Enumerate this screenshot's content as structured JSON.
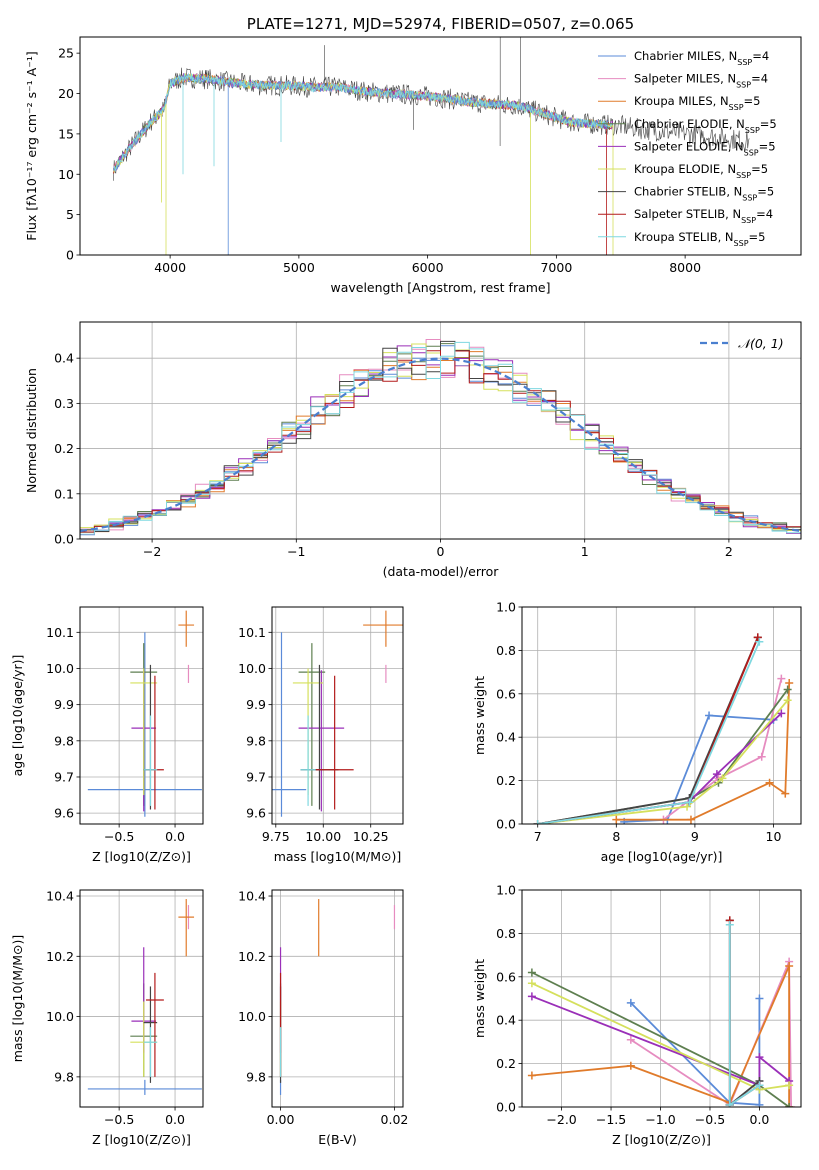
{
  "colors": {
    "chabrier_miles": "#5b8bd8",
    "salpeter_miles": "#e68cc0",
    "kroupa_miles": "#e07b2b",
    "chabrier_elodie": "#5e7f50",
    "salpeter_elodie": "#9a2fb8",
    "kroupa_elodie": "#d5e05c",
    "chabrier_stelib": "#444444",
    "salpeter_stelib": "#b31b1b",
    "kroupa_stelib": "#7fd8e0",
    "gaussian": "#4a7fcf"
  },
  "chart_data": [
    {
      "id": "spectrum",
      "type": "line",
      "title": "PLATE=1271, MJD=52974, FIBERID=0507, z=0.065",
      "xlabel": "wavelength [Angstrom, rest frame]",
      "ylabel": "Flux [fλ10⁻¹⁷ erg cm⁻² s⁻¹ A⁻¹]",
      "xlim": [
        3300,
        8900
      ],
      "ylim": [
        0,
        27
      ],
      "xticks": [
        "4000",
        "5000",
        "6000",
        "7000",
        "8000"
      ],
      "yticks": [
        "0",
        "5",
        "10",
        "15",
        "20",
        "25"
      ],
      "legend_position": "top-right",
      "legend": [
        "Chabrier MILES, N_SSP=4",
        "Salpeter MILES, N_SSP=4",
        "Kroupa MILES, N_SSP=5",
        "Chabrier ELODIE, N_SSP=5",
        "Salpeter ELODIE, N_SSP=5",
        "Kroupa ELODIE, N_SSP=5",
        "Chabrier STELIB, N_SSP=5",
        "Salpeter STELIB, N_SSP=4",
        "Kroupa STELIB, N_SSP=5"
      ],
      "continuum": {
        "x": [
          3560,
          3650,
          3750,
          3850,
          3950,
          4000,
          4100,
          4300,
          4500,
          4700,
          4900,
          5100,
          5300,
          5500,
          5700,
          5900,
          6100,
          6300,
          6500,
          6700,
          6900,
          7100,
          7300,
          7500,
          7700,
          7900,
          8100,
          8300,
          8450,
          8500
        ],
        "y": [
          10.5,
          12.5,
          14.5,
          16.5,
          18.0,
          21.2,
          22.0,
          21.8,
          21.3,
          21.0,
          21.0,
          20.8,
          20.8,
          20.3,
          20.0,
          19.8,
          19.5,
          19.0,
          18.7,
          18.5,
          17.5,
          16.5,
          16.2,
          16.0,
          15.5,
          15.2,
          14.9,
          14.5,
          14.2,
          14.1
        ]
      },
      "absorption_dips": [
        {
          "x": 3933,
          "y": 6.5,
          "series": "kroupa_elodie"
        },
        {
          "x": 3968,
          "y": 0.0,
          "series": "kroupa_elodie"
        },
        {
          "x": 4100,
          "y": 10.0,
          "series": "kroupa_stelib"
        },
        {
          "x": 4341,
          "y": 11.0,
          "series": "kroupa_stelib"
        },
        {
          "x": 4451,
          "y": 0.0,
          "series": "chabrier_miles"
        },
        {
          "x": 4861,
          "y": 14.0,
          "series": "kroupa_stelib"
        },
        {
          "x": 5890,
          "y": 15.5,
          "series": "chabrier_stelib"
        },
        {
          "x": 6563,
          "y": 13.5,
          "series": "chabrier_stelib"
        },
        {
          "x": 6800,
          "y": 0.0,
          "series": "kroupa_elodie"
        },
        {
          "x": 7390,
          "y": 0.0,
          "series": "salpeter_stelib"
        },
        {
          "x": 7440,
          "y": 0.0,
          "series": "kroupa_elodie"
        }
      ],
      "emission_spikes": [
        {
          "x": 5200,
          "y": 26.0
        },
        {
          "x": 6564,
          "y": 27.0
        },
        {
          "x": 6720,
          "y": 27.0
        }
      ]
    },
    {
      "id": "residuals",
      "type": "line",
      "xlabel": "(data-model)/error",
      "ylabel": "Normed distribution",
      "xlim": [
        -2.5,
        2.5
      ],
      "ylim": [
        0,
        0.48
      ],
      "xticks": [
        "−2",
        "−1",
        "0",
        "1",
        "2"
      ],
      "yticks": [
        "0.0",
        "0.1",
        "0.2",
        "0.3",
        "0.4"
      ],
      "grid": true,
      "legend_position": "top-right",
      "legend": [
        "𝒩(0, 1)"
      ],
      "histogram_bins": {
        "start": -2.5,
        "width": 0.1,
        "count": 50
      },
      "gaussian": {
        "mean": 0,
        "sigma": 1
      }
    },
    {
      "id": "age-vs-Z",
      "type": "scatter",
      "xlabel": "Z [log10(Z/Z⊙)]",
      "ylabel": "age  [log10(age/yr)]",
      "xlim": [
        -0.85,
        0.25
      ],
      "ylim": [
        9.57,
        10.17
      ],
      "xticks": [
        "−0.5",
        "0.0"
      ],
      "yticks": [
        "9.6",
        "9.7",
        "9.8",
        "9.9",
        "10.0",
        "10.1"
      ],
      "grid": true,
      "points": [
        {
          "series": "chabrier_miles",
          "x": -0.27,
          "xerr": 0.51,
          "y": 9.665,
          "yerr_lo": 0.075,
          "yerr_hi": 0.435
        },
        {
          "series": "salpeter_miles",
          "x": 0.12,
          "xerr": 0.0,
          "y": 9.99,
          "yerr_lo": 0.03,
          "yerr_hi": 0.02
        },
        {
          "series": "kroupa_miles",
          "x": 0.1,
          "xerr": 0.07,
          "y": 10.12,
          "yerr_lo": 0.06,
          "yerr_hi": 0.04
        },
        {
          "series": "chabrier_elodie",
          "x": -0.28,
          "xerr": 0.12,
          "y": 9.99,
          "yerr_lo": 0.37,
          "yerr_hi": 0.08
        },
        {
          "series": "salpeter_elodie",
          "x": -0.28,
          "xerr": 0.11,
          "y": 9.835,
          "yerr_lo": 0.23,
          "yerr_hi": 0.16
        },
        {
          "series": "kroupa_elodie",
          "x": -0.28,
          "xerr": 0.12,
          "y": 9.96,
          "yerr_lo": 0.31,
          "yerr_hi": 0.04
        },
        {
          "series": "chabrier_stelib",
          "x": -0.22,
          "xerr": 0.06,
          "y": 9.72,
          "yerr_lo": 0.11,
          "yerr_hi": 0.29
        },
        {
          "series": "salpeter_stelib",
          "x": -0.18,
          "xerr": 0.08,
          "y": 9.72,
          "yerr_lo": 0.11,
          "yerr_hi": 0.26
        },
        {
          "series": "kroupa_stelib",
          "x": -0.22,
          "xerr": 0.06,
          "y": 9.72,
          "yerr_lo": 0.1,
          "yerr_hi": 0.15
        }
      ]
    },
    {
      "id": "age-vs-mass",
      "type": "scatter",
      "xlabel": "mass [log10(M/M⊙)]",
      "ylabel": "",
      "xlim": [
        9.73,
        10.42
      ],
      "ylim": [
        9.57,
        10.17
      ],
      "xticks": [
        "9.75",
        "10.00",
        "10.25"
      ],
      "yticks": [
        "9.6",
        "9.7",
        "9.8",
        "9.9",
        "10.0",
        "10.1"
      ],
      "grid": true,
      "points": [
        {
          "series": "chabrier_miles",
          "x": 9.78,
          "xerr": 0.13,
          "y": 9.665,
          "yerr_lo": 0.075,
          "yerr_hi": 0.435
        },
        {
          "series": "salpeter_miles",
          "x": 10.33,
          "xerr": 0.0,
          "y": 9.99,
          "yerr_lo": 0.03,
          "yerr_hi": 0.02
        },
        {
          "series": "kroupa_miles",
          "x": 10.33,
          "xerr": 0.12,
          "y": 10.12,
          "yerr_lo": 0.06,
          "yerr_hi": 0.04
        },
        {
          "series": "chabrier_elodie",
          "x": 9.94,
          "xerr": 0.07,
          "y": 9.99,
          "yerr_lo": 0.37,
          "yerr_hi": 0.08
        },
        {
          "series": "salpeter_elodie",
          "x": 9.99,
          "xerr": 0.12,
          "y": 9.835,
          "yerr_lo": 0.23,
          "yerr_hi": 0.16
        },
        {
          "series": "kroupa_elodie",
          "x": 9.92,
          "xerr": 0.08,
          "y": 9.96,
          "yerr_lo": 0.31,
          "yerr_hi": 0.04
        },
        {
          "series": "chabrier_stelib",
          "x": 9.98,
          "xerr": 0.1,
          "y": 9.72,
          "yerr_lo": 0.11,
          "yerr_hi": 0.29
        },
        {
          "series": "salpeter_stelib",
          "x": 10.06,
          "xerr": 0.1,
          "y": 9.72,
          "yerr_lo": 0.11,
          "yerr_hi": 0.26
        },
        {
          "series": "kroupa_stelib",
          "x": 9.92,
          "xerr": 0.04,
          "y": 9.72,
          "yerr_lo": 0.1,
          "yerr_hi": 0.15
        }
      ]
    },
    {
      "id": "weight-vs-age",
      "type": "line",
      "xlabel": "age  [log10(age/yr)]",
      "ylabel": "mass weight",
      "xlim": [
        6.8,
        10.35
      ],
      "ylim": [
        0,
        1.0
      ],
      "xticks": [
        "7",
        "8",
        "9",
        "10"
      ],
      "yticks": [
        "0.0",
        "0.2",
        "0.4",
        "0.6",
        "0.8",
        "1.0"
      ],
      "grid": true,
      "series": [
        {
          "key": "chabrier_miles",
          "x": [
            8.1,
            8.65,
            9.18,
            10.0
          ],
          "y": [
            0.01,
            0.02,
            0.5,
            0.48
          ]
        },
        {
          "key": "salpeter_miles",
          "x": [
            8.6,
            9.3,
            9.85,
            10.1
          ],
          "y": [
            0.02,
            0.21,
            0.31,
            0.67
          ]
        },
        {
          "key": "kroupa_miles",
          "x": [
            8.0,
            8.95,
            9.95,
            10.15,
            10.2
          ],
          "y": [
            0.02,
            0.02,
            0.19,
            0.14,
            0.65
          ]
        },
        {
          "key": "chabrier_elodie",
          "x": [
            7.0,
            8.95,
            9.3,
            10.18
          ],
          "y": [
            0.0,
            0.12,
            0.19,
            0.62
          ]
        },
        {
          "key": "salpeter_elodie",
          "x": [
            7.0,
            8.92,
            9.28,
            10.1
          ],
          "y": [
            0.0,
            0.1,
            0.23,
            0.51
          ]
        },
        {
          "key": "kroupa_elodie",
          "x": [
            7.0,
            8.9,
            9.35,
            10.18
          ],
          "y": [
            0.0,
            0.08,
            0.21,
            0.57
          ]
        },
        {
          "key": "chabrier_stelib",
          "x": [
            7.0,
            8.93,
            9.8
          ],
          "y": [
            0.0,
            0.12,
            0.86
          ]
        },
        {
          "key": "salpeter_stelib",
          "x": [
            7.0,
            8.93,
            9.8
          ],
          "y": [
            0.0,
            0.1,
            0.86
          ]
        },
        {
          "key": "kroupa_stelib",
          "x": [
            7.0,
            8.93,
            9.82
          ],
          "y": [
            0.0,
            0.1,
            0.84
          ]
        }
      ]
    },
    {
      "id": "mass-vs-Z",
      "type": "scatter",
      "xlabel": "Z [log10(Z/Z⊙)]",
      "ylabel": "mass [log10(M/M⊙)]",
      "xlim": [
        -0.85,
        0.25
      ],
      "ylim": [
        9.7,
        10.42
      ],
      "xticks": [
        "−0.5",
        "0.0"
      ],
      "yticks": [
        "9.8",
        "10.0",
        "10.2",
        "10.4"
      ],
      "grid": true,
      "points": [
        {
          "series": "chabrier_miles",
          "x": -0.27,
          "xerr": 0.51,
          "y": 9.76,
          "yerr_lo": 0.02,
          "yerr_hi": 0.03
        },
        {
          "series": "salpeter_miles",
          "x": 0.12,
          "xerr": 0.0,
          "y": 10.33,
          "yerr_lo": 0.04,
          "yerr_hi": 0.04
        },
        {
          "series": "kroupa_miles",
          "x": 0.1,
          "xerr": 0.07,
          "y": 10.33,
          "yerr_lo": 0.13,
          "yerr_hi": 0.06
        },
        {
          "series": "chabrier_elodie",
          "x": -0.28,
          "xerr": 0.12,
          "y": 9.935,
          "yerr_lo": 0.135,
          "yerr_hi": 0.175
        },
        {
          "series": "salpeter_elodie",
          "x": -0.28,
          "xerr": 0.11,
          "y": 9.985,
          "yerr_lo": 0.105,
          "yerr_hi": 0.245
        },
        {
          "series": "kroupa_elodie",
          "x": -0.28,
          "xerr": 0.12,
          "y": 9.915,
          "yerr_lo": 0.115,
          "yerr_hi": 0.135
        },
        {
          "series": "chabrier_stelib",
          "x": -0.22,
          "xerr": 0.06,
          "y": 9.98,
          "yerr_lo": 0.2,
          "yerr_hi": 0.12
        },
        {
          "series": "salpeter_stelib",
          "x": -0.18,
          "xerr": 0.08,
          "y": 10.055,
          "yerr_lo": 0.255,
          "yerr_hi": 0.09
        },
        {
          "series": "kroupa_stelib",
          "x": -0.22,
          "xerr": 0.06,
          "y": 9.915,
          "yerr_lo": 0.115,
          "yerr_hi": 0.05
        }
      ]
    },
    {
      "id": "mass-vs-ebv",
      "type": "scatter",
      "xlabel": "E(B-V)",
      "ylabel": "",
      "xlim": [
        -0.0015,
        0.0215
      ],
      "ylim": [
        9.7,
        10.42
      ],
      "xticks": [
        "0.00",
        "0.02"
      ],
      "yticks": [
        "9.8",
        "10.0",
        "10.2",
        "10.4"
      ],
      "grid": true,
      "points": [
        {
          "series": "chabrier_miles",
          "x": 0.0,
          "y": 9.76,
          "yerr_lo": 0.02,
          "yerr_hi": 0.03
        },
        {
          "series": "salpeter_miles",
          "x": 0.02,
          "y": 10.33,
          "yerr_lo": 0.04,
          "yerr_hi": 0.04
        },
        {
          "series": "kroupa_miles",
          "x": 0.0067,
          "y": 10.33,
          "yerr_lo": 0.13,
          "yerr_hi": 0.06
        },
        {
          "series": "chabrier_elodie",
          "x": 0.0,
          "y": 9.935,
          "yerr_lo": 0.135,
          "yerr_hi": 0.175
        },
        {
          "series": "salpeter_elodie",
          "x": 0.0,
          "y": 9.985,
          "yerr_lo": 0.105,
          "yerr_hi": 0.245
        },
        {
          "series": "kroupa_elodie",
          "x": 0.0,
          "y": 9.915,
          "yerr_lo": 0.115,
          "yerr_hi": 0.135
        },
        {
          "series": "chabrier_stelib",
          "x": 0.0,
          "y": 9.98,
          "yerr_lo": 0.2,
          "yerr_hi": 0.12
        },
        {
          "series": "salpeter_stelib",
          "x": 0.0,
          "y": 10.055,
          "yerr_lo": 0.255,
          "yerr_hi": 0.09
        },
        {
          "series": "kroupa_stelib",
          "x": 0.0,
          "y": 9.915,
          "yerr_lo": 0.115,
          "yerr_hi": 0.05
        }
      ]
    },
    {
      "id": "weight-vs-Z",
      "type": "line",
      "xlabel": "Z [log10(Z/Z⊙)]",
      "ylabel": "mass weight",
      "xlim": [
        -2.4,
        0.42
      ],
      "ylim": [
        0,
        1.0
      ],
      "xticks": [
        "−2.0",
        "−1.5",
        "−1.0",
        "−0.5",
        "0.0"
      ],
      "yticks": [
        "0.0",
        "0.2",
        "0.4",
        "0.6",
        "0.8",
        "1.0"
      ],
      "grid": true,
      "series": [
        {
          "key": "chabrier_miles",
          "x": [
            -1.3,
            -0.3,
            0.0,
            0.0
          ],
          "y": [
            0.48,
            0.02,
            0.01,
            0.5
          ]
        },
        {
          "key": "salpeter_miles",
          "x": [
            -1.3,
            -0.3,
            0.3,
            0.32
          ],
          "y": [
            0.31,
            0.01,
            0.67,
            0.0
          ]
        },
        {
          "key": "kroupa_miles",
          "x": [
            -2.3,
            -1.3,
            -0.3,
            0.3,
            0.3
          ],
          "y": [
            0.145,
            0.19,
            0.02,
            0.65,
            0.0
          ]
        },
        {
          "key": "chabrier_elodie",
          "x": [
            -2.3,
            0.0,
            0.3
          ],
          "y": [
            0.62,
            0.1,
            0.0
          ]
        },
        {
          "key": "salpeter_elodie",
          "x": [
            -2.3,
            0.0,
            0.0,
            0.3
          ],
          "y": [
            0.51,
            0.1,
            0.23,
            0.12
          ]
        },
        {
          "key": "kroupa_elodie",
          "x": [
            -2.3,
            0.0,
            0.3
          ],
          "y": [
            0.57,
            0.08,
            0.1
          ]
        },
        {
          "key": "chabrier_stelib",
          "x": [
            -0.3,
            -0.3,
            0.0
          ],
          "y": [
            0.86,
            0.01,
            0.12
          ]
        },
        {
          "key": "salpeter_stelib",
          "x": [
            -0.3,
            -0.3,
            0.0
          ],
          "y": [
            0.86,
            0.01,
            0.1
          ]
        },
        {
          "key": "kroupa_stelib",
          "x": [
            -0.3,
            -0.3,
            0.0
          ],
          "y": [
            0.84,
            0.01,
            0.1
          ]
        }
      ]
    }
  ]
}
